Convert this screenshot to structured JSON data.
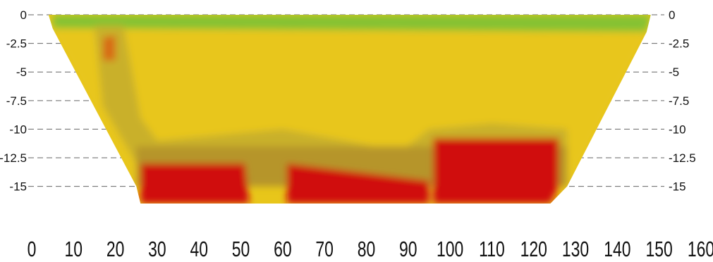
{
  "chart_data": {
    "type": "heatmap",
    "title": "",
    "xlabel": "",
    "ylabel": "",
    "x_ticks": [
      0,
      10,
      20,
      30,
      40,
      50,
      60,
      70,
      80,
      90,
      100,
      110,
      120,
      130,
      140,
      150,
      160
    ],
    "y_ticks_left": [
      "0",
      "-2.5",
      "-5",
      "-7.5",
      "-10",
      "-12.5",
      "-15"
    ],
    "y_ticks_right": [
      "0",
      "-2.5",
      "-5",
      "-7.5",
      "-10",
      "-12.5",
      "-15"
    ],
    "y_tick_values": [
      0,
      -2.5,
      -5,
      -7.5,
      -10,
      -12.5,
      -15
    ],
    "xlim": [
      0,
      160
    ],
    "ylim": [
      -16.5,
      0
    ],
    "grid": "dashed horizontal lines at each depth tick",
    "section_outline": [
      [
        4,
        0
      ],
      [
        148,
        0
      ],
      [
        147,
        -1.5
      ],
      [
        128,
        -15
      ],
      [
        124,
        -16.5
      ],
      [
        26,
        -16.5
      ],
      [
        25,
        -15
      ],
      [
        5,
        -1.2
      ]
    ],
    "colors": {
      "blue": "#4d8fbd",
      "green": "#86c232",
      "yellow": "#e8c61a",
      "olive": "#c9b02a",
      "brown": "#b6952c",
      "orange": "#d86a14",
      "red": "#d0100a"
    },
    "zones": [
      {
        "name": "top-band",
        "color": "green",
        "points": [
          [
            5,
            0
          ],
          [
            148,
            0
          ],
          [
            147,
            -1.5
          ],
          [
            5,
            -1.2
          ]
        ]
      },
      {
        "name": "main-body",
        "color": "yellow",
        "points": [
          [
            5,
            -1.2
          ],
          [
            147,
            -1.5
          ],
          [
            128,
            -15
          ],
          [
            25,
            -15
          ]
        ]
      },
      {
        "name": "olive-left",
        "color": "olive",
        "points": [
          [
            15,
            -1
          ],
          [
            22,
            -1
          ],
          [
            24,
            -5
          ],
          [
            26,
            -9
          ],
          [
            30,
            -11
          ],
          [
            45,
            -10.5
          ],
          [
            60,
            -10
          ],
          [
            75,
            -11
          ],
          [
            88,
            -12
          ],
          [
            95,
            -10
          ],
          [
            110,
            -9.5
          ],
          [
            128,
            -10
          ],
          [
            128,
            -13
          ],
          [
            25,
            -13
          ],
          [
            17,
            -8
          ]
        ]
      },
      {
        "name": "lower-brown",
        "color": "brown",
        "points": [
          [
            25,
            -11.5
          ],
          [
            128,
            -11.5
          ],
          [
            128,
            -15
          ],
          [
            25,
            -15
          ]
        ]
      },
      {
        "name": "red-left",
        "color": "red",
        "points": [
          [
            26,
            -13
          ],
          [
            51,
            -13
          ],
          [
            52,
            -16.5
          ],
          [
            26,
            -16.5
          ]
        ]
      },
      {
        "name": "red-mid",
        "color": "red",
        "points": [
          [
            61,
            -13
          ],
          [
            95,
            -14.5
          ],
          [
            95,
            -16.5
          ],
          [
            61,
            -16.5
          ]
        ]
      },
      {
        "name": "red-right",
        "color": "red",
        "points": [
          [
            96,
            -10.8
          ],
          [
            126,
            -10.8
          ],
          [
            126,
            -15
          ],
          [
            124,
            -16.5
          ],
          [
            96,
            -16.5
          ]
        ]
      },
      {
        "name": "anomaly-near-20",
        "color": "orange",
        "points": [
          [
            17,
            -2
          ],
          [
            20,
            -1.8
          ],
          [
            20,
            -4
          ],
          [
            17,
            -4
          ]
        ]
      }
    ]
  }
}
